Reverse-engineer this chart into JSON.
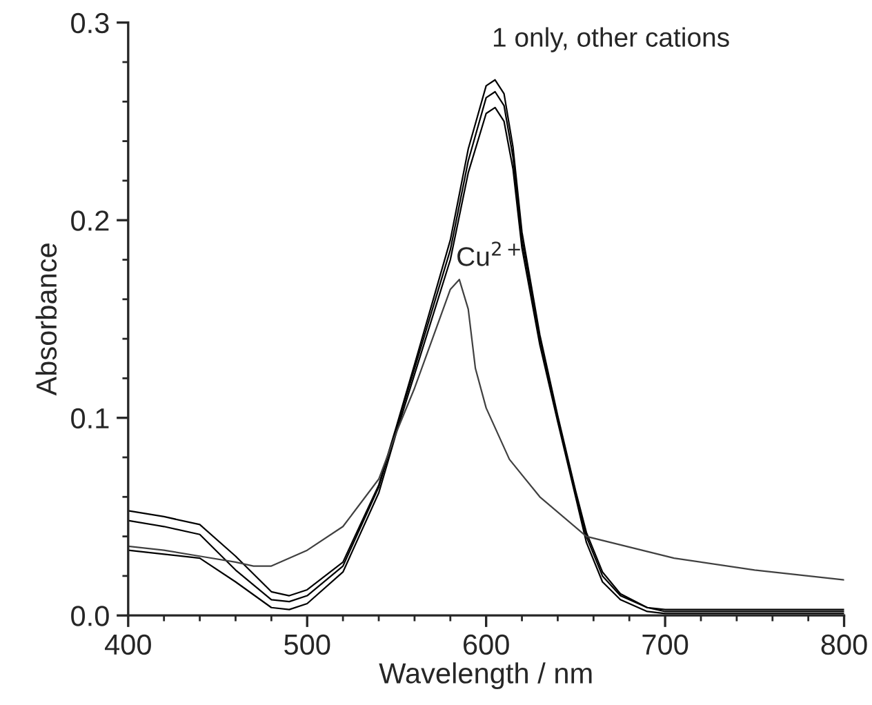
{
  "chart_data": {
    "type": "line",
    "xlabel": "Wavelength / nm",
    "ylabel": "Absorbance",
    "xlim": [
      400,
      800
    ],
    "ylim": [
      0,
      0.3
    ],
    "xticks": [
      400,
      500,
      600,
      700,
      800
    ],
    "yticks": [
      {
        "value": 0,
        "label": "0.0"
      },
      0.1,
      0.2,
      0.3
    ],
    "grid": false,
    "marker": "none",
    "line_style": "solid",
    "annotations": [
      "1 only, other cations",
      "Cu$^{2+}$"
    ],
    "series": [
      {
        "color": "#000000",
        "x": [
          400,
          420,
          440,
          460,
          480,
          490,
          500,
          520,
          540,
          550,
          560,
          580,
          590,
          600,
          605,
          610,
          615,
          620,
          630,
          640,
          650,
          656,
          665,
          675,
          690,
          700,
          750,
          800
        ],
        "values": [
          0.048,
          0.045,
          0.041,
          0.023,
          0.008,
          0.007,
          0.01,
          0.025,
          0.065,
          0.095,
          0.125,
          0.185,
          0.23,
          0.262,
          0.265,
          0.258,
          0.232,
          0.19,
          0.14,
          0.1,
          0.062,
          0.04,
          0.02,
          0.01,
          0.004,
          0.002,
          0.002,
          0.002
        ]
      },
      {
        "color": "#000000",
        "x": [
          400,
          420,
          440,
          460,
          480,
          490,
          500,
          520,
          540,
          550,
          560,
          580,
          590,
          600,
          605,
          610,
          615,
          620,
          630,
          640,
          650,
          656,
          665,
          675,
          690,
          700,
          750,
          800
        ],
        "values": [
          0.053,
          0.05,
          0.046,
          0.03,
          0.012,
          0.01,
          0.013,
          0.027,
          0.066,
          0.096,
          0.127,
          0.19,
          0.236,
          0.268,
          0.271,
          0.264,
          0.237,
          0.194,
          0.142,
          0.101,
          0.063,
          0.042,
          0.022,
          0.011,
          0.004,
          0.003,
          0.003,
          0.003
        ]
      },
      {
        "color": "#000000",
        "x": [
          400,
          420,
          440,
          460,
          480,
          490,
          500,
          520,
          540,
          550,
          560,
          580,
          590,
          600,
          605,
          610,
          615,
          620,
          630,
          640,
          650,
          656,
          665,
          675,
          690,
          700,
          750,
          800
        ],
        "values": [
          0.033,
          0.031,
          0.029,
          0.017,
          0.004,
          0.003,
          0.006,
          0.022,
          0.062,
          0.093,
          0.122,
          0.18,
          0.224,
          0.254,
          0.257,
          0.25,
          0.226,
          0.186,
          0.137,
          0.098,
          0.06,
          0.037,
          0.017,
          0.008,
          0.002,
          0.001,
          0.001,
          0.001
        ]
      },
      {
        "color": "#404040",
        "x": [
          400,
          420,
          440,
          460,
          470,
          480,
          500,
          520,
          540,
          550,
          560,
          570,
          580,
          585,
          590,
          594,
          600,
          613,
          630,
          656,
          705,
          750,
          800
        ],
        "values": [
          0.035,
          0.033,
          0.03,
          0.027,
          0.025,
          0.025,
          0.033,
          0.045,
          0.069,
          0.093,
          0.115,
          0.14,
          0.165,
          0.17,
          0.155,
          0.125,
          0.105,
          0.079,
          0.06,
          0.04,
          0.029,
          0.023,
          0.018
        ]
      }
    ]
  }
}
